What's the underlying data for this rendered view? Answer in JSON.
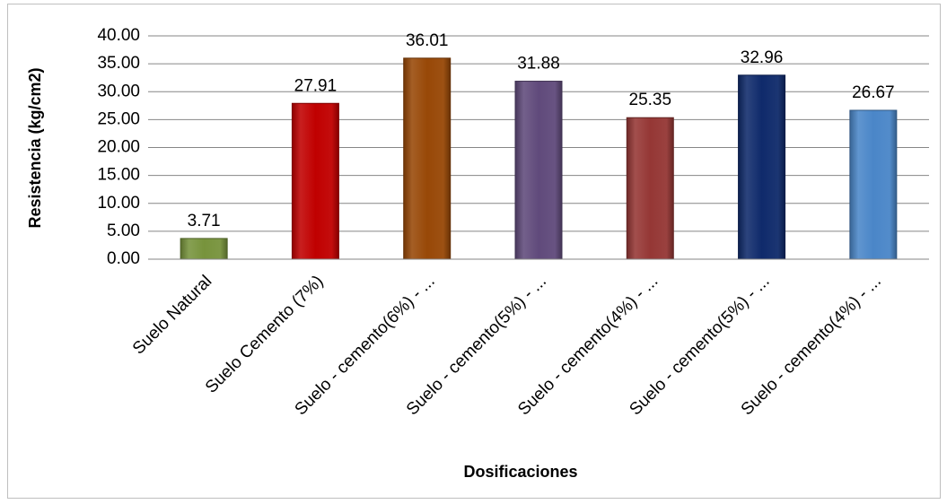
{
  "chart_data": {
    "type": "bar",
    "xlabel": "Dosificaciones",
    "ylabel": "Resistencia (kg/cm2)",
    "ylim": [
      0,
      40
    ],
    "ytick_step": 5,
    "ytick_labels": [
      "0.00",
      "5.00",
      "10.00",
      "15.00",
      "20.00",
      "25.00",
      "30.00",
      "35.00",
      "40.00"
    ],
    "grid": true,
    "legend": "none",
    "categories": [
      "Suelo Natural",
      "Suelo Cemento (7%)",
      "Suelo - cemento(6%) - ...",
      "Suelo - cemento(5%) - ...",
      "Suelo - cemento(4%) - ...",
      "Suelo - cemento(5%) - ...",
      "Suelo - cemento(4%) - ..."
    ],
    "values": [
      3.71,
      27.91,
      36.01,
      31.88,
      25.35,
      32.96,
      26.67
    ],
    "value_labels": [
      "3.71",
      "27.91",
      "36.01",
      "31.88",
      "25.35",
      "32.96",
      "26.67"
    ],
    "colors": [
      "#77933c",
      "#c00000",
      "#984807",
      "#604a7b",
      "#953735",
      "#0f2a6b",
      "#4a86c8"
    ]
  }
}
